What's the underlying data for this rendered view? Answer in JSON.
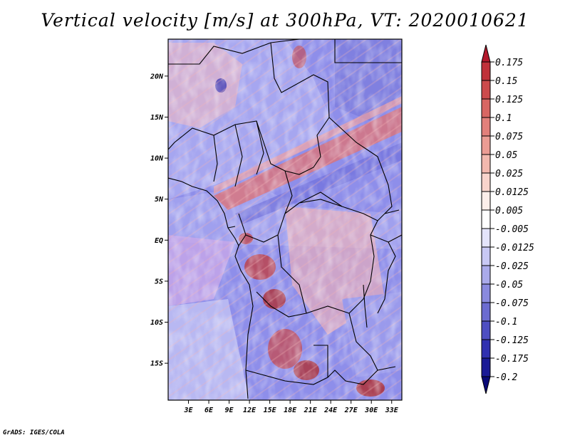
{
  "title": "Vertical velocity [m/s] at 300hPa, VT: 2020010621",
  "footer": "GrADS: IGES/COLA",
  "map": {
    "lat_labels": [
      "20N",
      "15N",
      "10N",
      "5N",
      "EQ",
      "5S",
      "10S",
      "15S"
    ],
    "lat_values": [
      20,
      15,
      10,
      5,
      0,
      -5,
      -10,
      -15
    ],
    "lon_labels": [
      "3E",
      "6E",
      "9E",
      "12E",
      "15E",
      "18E",
      "21E",
      "24E",
      "27E",
      "30E",
      "33E"
    ],
    "lon_values": [
      3,
      6,
      9,
      12,
      15,
      18,
      21,
      24,
      27,
      30,
      33
    ],
    "lon_range": [
      0,
      34.5
    ],
    "lat_range": [
      -19.5,
      24.5
    ]
  },
  "colorbar": {
    "labels": [
      "0.175",
      "0.15",
      "0.125",
      "0.1",
      "0.075",
      "0.05",
      "0.025",
      "0.0125",
      "0.005",
      "-0.005",
      "-0.0125",
      "-0.025",
      "-0.05",
      "-0.075",
      "-0.1",
      "-0.125",
      "-0.175",
      "-0.2"
    ],
    "colors": [
      "#b2182b",
      "#c0313a",
      "#cc4a4c",
      "#d86663",
      "#e2807b",
      "#eb9c94",
      "#f2b8ae",
      "#f8d4cc",
      "#fceeea",
      "#ffffff",
      "#e4e4fb",
      "#c8c8f4",
      "#aaaaea",
      "#8a8ade",
      "#6c6cd0",
      "#4e4ec2",
      "#3030b0",
      "#1a1a96",
      "#0a0a78"
    ]
  }
}
